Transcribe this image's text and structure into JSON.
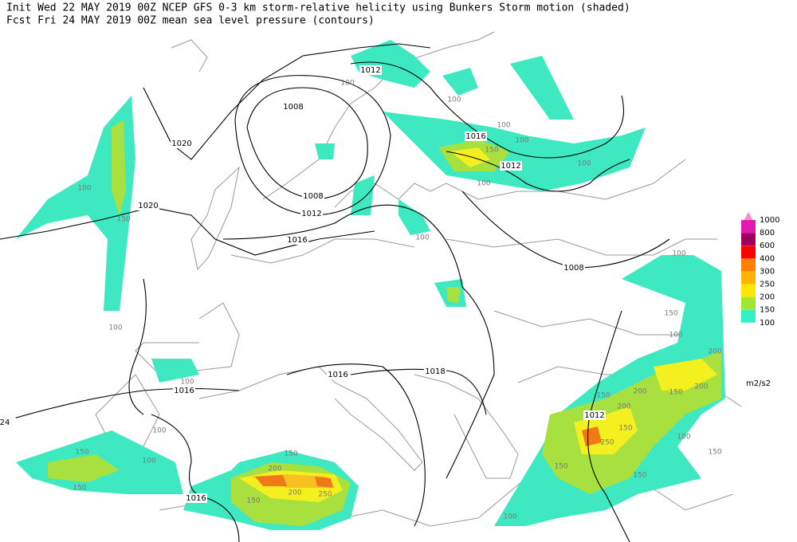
{
  "header": {
    "line1": "Init  Wed 22 MAY 2019 00Z  NCEP GFS 0-3 km storm-relative helicity using Bunkers Storm motion (shaded)",
    "line2": "Fcst Fri 24 MAY 2019 00Z   mean sea level pressure (contours)"
  },
  "legend": {
    "levels": [
      1000,
      800,
      600,
      400,
      300,
      250,
      200,
      150,
      100
    ],
    "colors": [
      "#f48fc8",
      "#e01ab0",
      "#a0005a",
      "#ff0000",
      "#ff7f00",
      "#ffb400",
      "#ffe600",
      "#a0e632",
      "#32f0c8"
    ],
    "units": "m2/s2"
  },
  "contour_labels": [
    1012,
    1008,
    1016,
    1012,
    1020,
    1020,
    1008,
    1012,
    1016,
    1008,
    1016,
    1018,
    1016,
    1012,
    1016,
    24
  ],
  "shading_labels": [
    100,
    100,
    100,
    100,
    150,
    100,
    100,
    100,
    150,
    100,
    100,
    100,
    150,
    100,
    200,
    150,
    200,
    150,
    200,
    200,
    150,
    250,
    100,
    150,
    150,
    150,
    100,
    150,
    150,
    100,
    100,
    100,
    200,
    150,
    150,
    200,
    250
  ]
}
